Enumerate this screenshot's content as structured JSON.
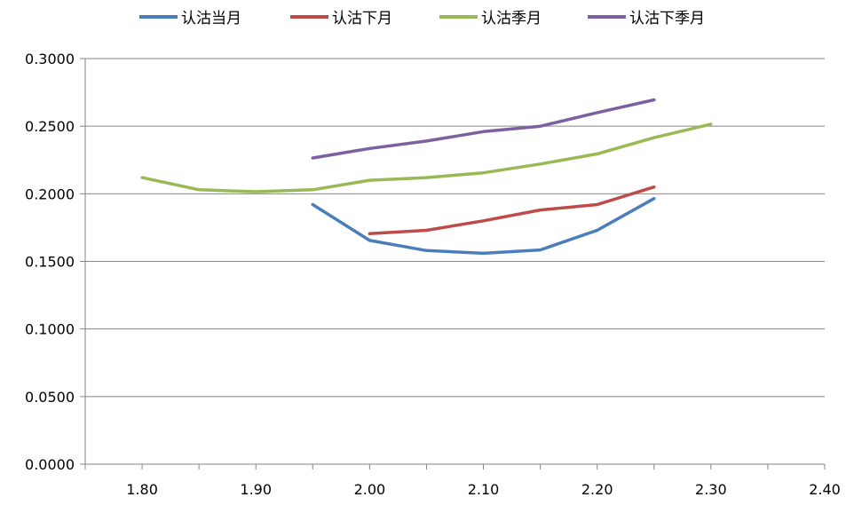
{
  "chart_data": {
    "type": "line",
    "title": "",
    "xlabel": "",
    "ylabel": "",
    "xlim": [
      1.75,
      2.4
    ],
    "ylim": [
      0,
      0.3
    ],
    "grid": "horizontal",
    "legend_position": "top",
    "x_ticks": [
      "1.80",
      "1.90",
      "2.00",
      "2.10",
      "2.20",
      "2.30",
      "2.40"
    ],
    "x_tick_values": [
      1.8,
      1.9,
      2.0,
      2.1,
      2.2,
      2.3,
      2.4
    ],
    "y_ticks": [
      "0.0000",
      "0.0500",
      "0.1000",
      "0.1500",
      "0.2000",
      "0.2500",
      "0.3000"
    ],
    "y_tick_values": [
      0,
      0.05,
      0.1,
      0.15,
      0.2,
      0.25,
      0.3
    ],
    "series": [
      {
        "name": "认沽当月",
        "color": "#4a7ebb",
        "x": [
          1.95,
          2.0,
          2.05,
          2.1,
          2.15,
          2.2,
          2.25
        ],
        "y": [
          0.192,
          0.1655,
          0.158,
          0.156,
          0.1585,
          0.173,
          0.1965
        ]
      },
      {
        "name": "认沽下月",
        "color": "#be4b48",
        "x": [
          2.0,
          2.05,
          2.1,
          2.15,
          2.2,
          2.25
        ],
        "y": [
          0.1705,
          0.173,
          0.18,
          0.188,
          0.192,
          0.205
        ]
      },
      {
        "name": "认沽季月",
        "color": "#98b954",
        "x": [
          1.8,
          1.85,
          1.9,
          1.95,
          2.0,
          2.05,
          2.1,
          2.15,
          2.2,
          2.25,
          2.3
        ],
        "y": [
          0.212,
          0.203,
          0.2015,
          0.203,
          0.21,
          0.212,
          0.2155,
          0.222,
          0.2295,
          0.2415,
          0.2515
        ]
      },
      {
        "name": "认沽下季月",
        "color": "#7d60a0",
        "x": [
          1.95,
          2.0,
          2.05,
          2.1,
          2.15,
          2.2,
          2.25
        ],
        "y": [
          0.2265,
          0.2335,
          0.239,
          0.246,
          0.25,
          0.26,
          0.2695
        ]
      }
    ],
    "axis_color": "#868686",
    "grid_color": "#868686"
  }
}
